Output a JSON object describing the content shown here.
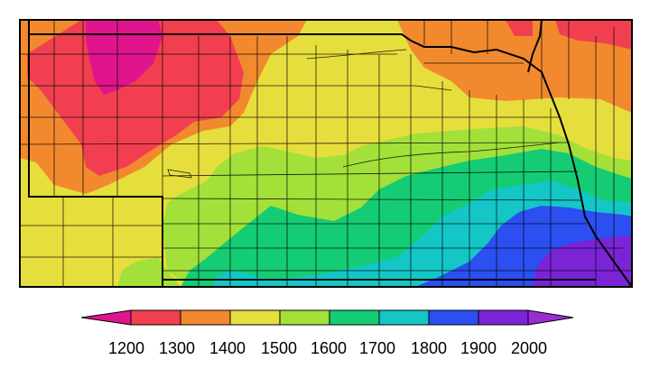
{
  "map": {
    "colors": {
      "below_1200": "#e0148c",
      "1200_1300": "#f23f4f",
      "1300_1400": "#f2892f",
      "1400_1500": "#e6de3c",
      "1500_1600": "#a3e03a",
      "1600_1700": "#14cc74",
      "1700_1800": "#14c6c6",
      "1800_1900": "#2b4ff0",
      "1900_2000": "#7a24d6",
      "above_2000": "#9a2cd6"
    }
  },
  "legend": {
    "ticks": [
      "1200",
      "1300",
      "1400",
      "1500",
      "1600",
      "1700",
      "1800",
      "1900",
      "2000"
    ],
    "colors": [
      "#e0148c",
      "#f23f4f",
      "#f2892f",
      "#e6de3c",
      "#a3e03a",
      "#14cc74",
      "#14c6c6",
      "#2b4ff0",
      "#7a24d6",
      "#9a2cd6"
    ]
  }
}
